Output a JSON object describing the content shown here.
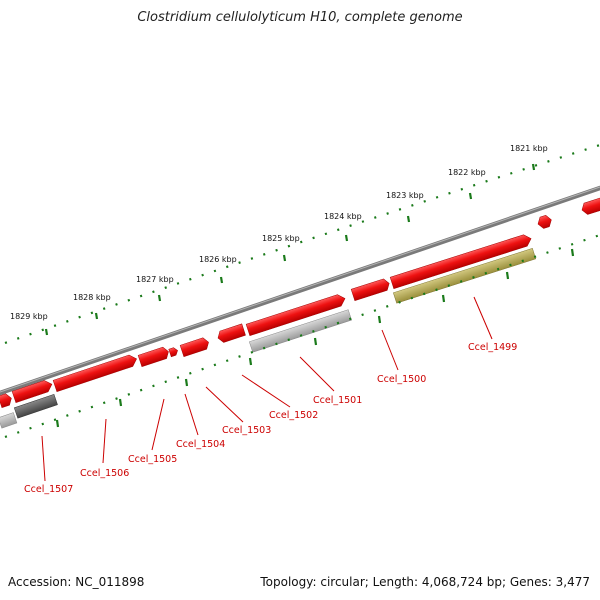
{
  "title": "Clostridium cellulolyticum H10, complete genome",
  "accession": "Accession: NC_011898",
  "summary": "Topology: circular; Length: 4,068,724 bp; Genes: 3,477",
  "map": {
    "kbp_labels": [
      "1829 kbp",
      "1828 kbp",
      "1827 kbp",
      "1826 kbp",
      "1825 kbp",
      "1824 kbp",
      "1823 kbp",
      "1822 kbp",
      "1821 kbp"
    ],
    "genes": [
      "Ccel_1507",
      "Ccel_1506",
      "Ccel_1505",
      "Ccel_1504",
      "Ccel_1503",
      "Ccel_1502",
      "Ccel_1501",
      "Ccel_1500",
      "Ccel_1499"
    ],
    "colors": {
      "backbone": "#7a7a7a",
      "gene": "#ee1111",
      "gene_label": "#cc0000",
      "tick": "#1a7a1a",
      "feature_gray": "#b0b0b0",
      "feature_dark": "#555555",
      "feature_olive": "#b5aa5a"
    }
  }
}
